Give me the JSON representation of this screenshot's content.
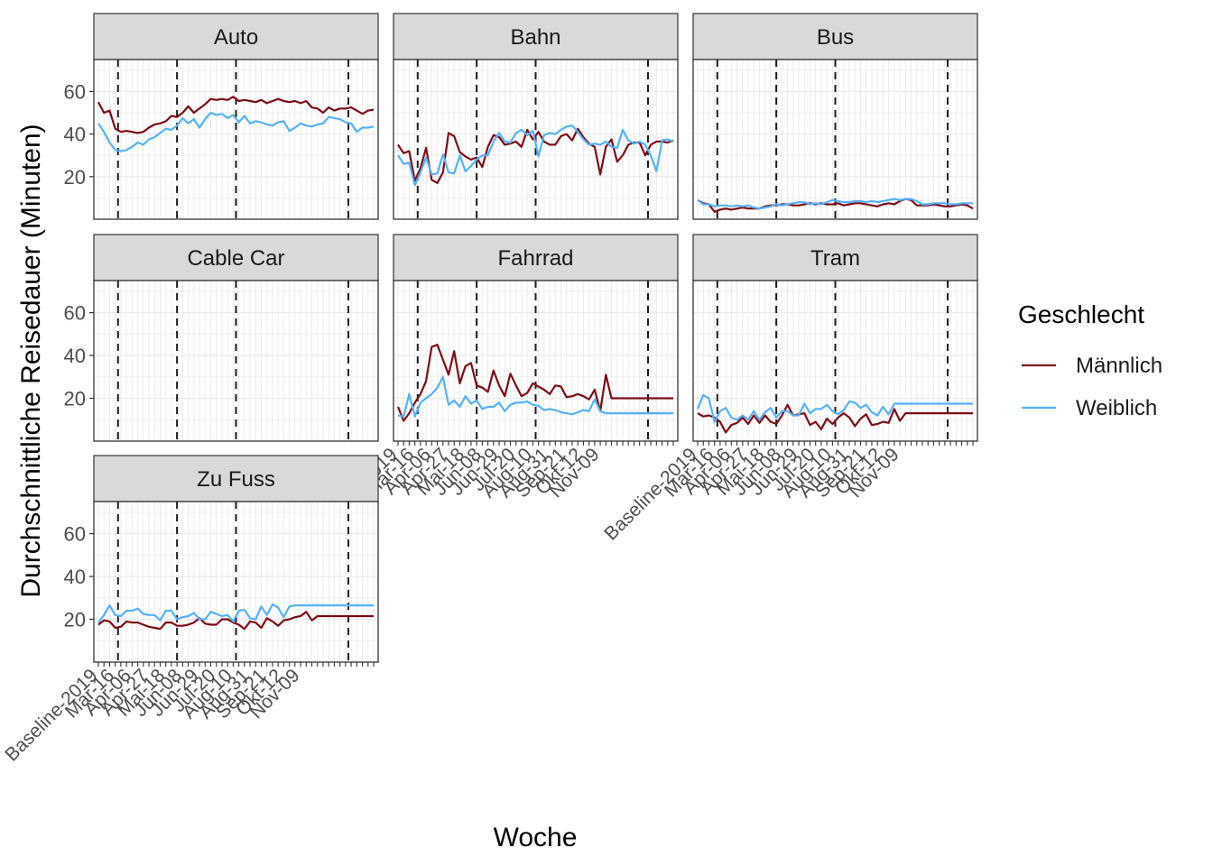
{
  "chart_data": {
    "type": "line",
    "xlabel": "Woche",
    "ylabel": "Durchschnittliche Reisedauer (Minuten)",
    "ylim": [
      0,
      75
    ],
    "yticks": [
      20,
      40,
      60
    ],
    "grid": true,
    "legend": {
      "title": "Geschlecht",
      "position": "right",
      "entries": [
        {
          "name": "Männlich",
          "color": "#7b0d17"
        },
        {
          "name": "Weiblich",
          "color": "#56b1f7"
        }
      ]
    },
    "x_count": 50,
    "x_tick_labels": [
      {
        "i": 0,
        "label": "Baseline-2019"
      },
      {
        "i": 3,
        "label": "Mar-16"
      },
      {
        "i": 6,
        "label": "Apr-06"
      },
      {
        "i": 9,
        "label": "Apr-27"
      },
      {
        "i": 12,
        "label": "Mai-18"
      },
      {
        "i": 15,
        "label": "Jun-08"
      },
      {
        "i": 18,
        "label": "Jun-29"
      },
      {
        "i": 21,
        "label": "Jul-20"
      },
      {
        "i": 24,
        "label": "Aug-10"
      },
      {
        "i": 27,
        "label": "Aug-31"
      },
      {
        "i": 30,
        "label": "Sep-21"
      },
      {
        "i": 33,
        "label": "Okt-12"
      },
      {
        "i": 36,
        "label": "Nov-09"
      }
    ],
    "x_tick_count": 50,
    "vlines_x": [
      3.5,
      14,
      24.5,
      44.5
    ],
    "panels": [
      {
        "label": "Auto",
        "series": [
          {
            "name": "Männlich",
            "values": [
              55.0,
              50.0,
              51.0,
              42.5,
              41.0,
              41.5,
              41.0,
              40.5,
              41.0,
              43.0,
              44.5,
              45.0,
              46.0,
              48.5,
              48.0,
              50.0,
              53.0,
              50.0,
              52.0,
              54.0,
              56.5,
              56.0,
              56.5,
              56.0,
              57.5,
              55.5,
              56.0,
              55.5,
              55.0,
              56.0,
              54.5,
              55.5,
              56.5,
              55.5,
              55.0,
              55.5,
              54.5,
              55.5,
              52.5,
              52.0,
              50.0,
              52.5,
              51.0,
              52.0,
              52.0,
              52.5,
              51.0,
              49.5,
              51.0,
              51.5
            ]
          },
          {
            "name": "Weiblich",
            "values": [
              45.0,
              41.0,
              36.0,
              32.5,
              32.0,
              32.5,
              34.0,
              36.0,
              35.0,
              37.5,
              38.5,
              40.5,
              42.5,
              42.0,
              44.0,
              47.5,
              45.0,
              47.0,
              43.0,
              47.0,
              50.0,
              49.0,
              49.5,
              47.5,
              49.0,
              45.5,
              48.5,
              45.0,
              46.0,
              45.5,
              44.5,
              44.0,
              45.5,
              46.0,
              41.5,
              43.0,
              45.0,
              44.0,
              43.5,
              44.5,
              45.0,
              48.0,
              47.5,
              47.0,
              45.5,
              45.0,
              41.0,
              43.0,
              43.0,
              43.5
            ]
          }
        ]
      },
      {
        "label": "Bahn",
        "series": [
          {
            "name": "Männlich",
            "values": [
              35.0,
              31.0,
              32.0,
              18.0,
              24.0,
              33.5,
              18.5,
              17.0,
              22.0,
              40.5,
              39.0,
              31.5,
              29.5,
              28.0,
              29.0,
              24.5,
              34.0,
              39.5,
              38.5,
              35.0,
              35.5,
              36.5,
              34.0,
              42.0,
              37.5,
              41.0,
              36.5,
              35.0,
              35.0,
              39.0,
              40.0,
              37.0,
              42.5,
              38.5,
              35.5,
              34.0,
              21.0,
              34.0,
              37.5,
              27.0,
              30.0,
              35.0,
              36.0,
              36.0,
              30.0,
              35.0,
              36.5,
              36.5,
              36.0,
              37.0
            ]
          },
          {
            "name": "Weiblich",
            "values": [
              30.0,
              26.0,
              26.5,
              16.0,
              22.0,
              29.0,
              21.0,
              21.5,
              30.5,
              22.0,
              21.5,
              30.0,
              22.5,
              25.0,
              28.0,
              30.0,
              30.0,
              36.5,
              40.5,
              36.5,
              36.0,
              40.5,
              42.0,
              39.5,
              41.5,
              29.5,
              39.5,
              40.5,
              40.0,
              42.0,
              43.5,
              44.0,
              41.0,
              37.5,
              35.0,
              35.5,
              35.0,
              36.5,
              34.0,
              33.5,
              42.0,
              37.0,
              35.5,
              36.5,
              35.0,
              30.0,
              22.5,
              37.0,
              37.5,
              36.5
            ]
          }
        ]
      },
      {
        "label": "Bus",
        "series": [
          {
            "name": "Männlich",
            "values": [
              9.0,
              7.5,
              7.0,
              3.5,
              4.5,
              5.0,
              4.5,
              5.0,
              5.5,
              5.0,
              5.0,
              5.0,
              6.0,
              6.5,
              6.5,
              7.0,
              7.0,
              6.5,
              6.5,
              7.0,
              7.5,
              7.0,
              7.5,
              7.0,
              7.0,
              7.5,
              6.5,
              7.0,
              7.5,
              7.5,
              7.0,
              6.5,
              6.0,
              7.0,
              7.5,
              7.0,
              8.5,
              9.5,
              9.0,
              6.5,
              6.5,
              6.5,
              7.0,
              6.5,
              6.0,
              6.0,
              6.5,
              7.0,
              6.5,
              5.0
            ]
          },
          {
            "name": "Weiblich",
            "values": [
              9.0,
              7.0,
              7.0,
              6.0,
              6.5,
              6.5,
              6.0,
              6.5,
              6.0,
              6.5,
              5.5,
              5.0,
              5.5,
              6.0,
              7.0,
              6.5,
              7.0,
              7.5,
              8.0,
              8.0,
              7.0,
              7.5,
              7.0,
              8.0,
              9.0,
              8.5,
              8.0,
              8.0,
              8.5,
              8.5,
              8.0,
              8.5,
              8.0,
              8.5,
              9.0,
              9.5,
              9.0,
              9.5,
              9.5,
              8.5,
              7.0,
              7.0,
              7.5,
              7.5,
              7.5,
              7.0,
              7.0,
              7.5,
              7.5,
              7.5
            ]
          }
        ]
      },
      {
        "label": "Cable Car",
        "series": [
          {
            "name": "Männlich",
            "values": []
          },
          {
            "name": "Weiblich",
            "values": []
          }
        ]
      },
      {
        "label": "Fahrrad",
        "series": [
          {
            "name": "Männlich",
            "values": [
              16.0,
              9.5,
              13.0,
              18.0,
              22.0,
              28.0,
              44.0,
              45.0,
              38.0,
              31.0,
              42.0,
              27.0,
              35.0,
              36.5,
              26.0,
              25.0,
              23.0,
              33.0,
              26.0,
              21.0,
              31.5,
              26.0,
              21.0,
              22.5,
              27.0,
              25.5,
              24.0,
              22.0,
              26.0,
              25.5,
              20.5,
              21.0,
              22.0,
              21.0,
              19.5,
              24.0,
              14.0,
              31.0,
              20.0,
              20.0,
              20.0,
              20.0,
              20.0,
              20.0,
              20.0,
              20.0,
              20.0,
              20.0,
              20.0,
              20.0
            ]
          },
          {
            "name": "Weiblich",
            "values": [
              12.0,
              11.5,
              22.0,
              11.5,
              18.0,
              20.0,
              22.0,
              25.0,
              30.0,
              17.0,
              19.0,
              16.0,
              21.0,
              17.5,
              19.0,
              15.0,
              16.0,
              16.0,
              18.0,
              14.0,
              17.0,
              18.0,
              18.0,
              18.5,
              17.0,
              16.5,
              14.5,
              15.0,
              14.5,
              13.5,
              13.0,
              12.5,
              13.5,
              14.5,
              14.0,
              19.5,
              14.0,
              13.0,
              13.0,
              13.0,
              13.0,
              13.0,
              13.0,
              13.0,
              13.0,
              13.0,
              13.0,
              13.0,
              13.0,
              13.0
            ]
          }
        ]
      },
      {
        "label": "Tram",
        "series": [
          {
            "name": "Männlich",
            "values": [
              13.0,
              11.5,
              12.0,
              11.0,
              9.0,
              4.0,
              7.5,
              8.5,
              11.0,
              8.0,
              12.0,
              8.5,
              12.0,
              9.0,
              8.0,
              12.0,
              17.0,
              12.0,
              12.5,
              13.0,
              7.5,
              9.0,
              5.5,
              10.5,
              8.0,
              11.0,
              13.0,
              11.0,
              7.0,
              10.5,
              12.5,
              7.5,
              8.0,
              9.0,
              8.5,
              15.0,
              9.5,
              13.0,
              13.0,
              13.0,
              13.0,
              13.0,
              13.0,
              13.0,
              13.0,
              13.0,
              13.0,
              13.0,
              13.0,
              13.0
            ]
          },
          {
            "name": "Weiblich",
            "values": [
              15.0,
              21.5,
              20.0,
              9.0,
              14.0,
              15.5,
              11.0,
              10.0,
              12.0,
              10.0,
              14.0,
              10.0,
              13.5,
              15.5,
              11.0,
              14.0,
              14.0,
              12.0,
              12.0,
              17.5,
              13.0,
              15.0,
              15.0,
              17.0,
              14.0,
              12.5,
              14.5,
              18.5,
              18.0,
              15.5,
              17.0,
              13.5,
              12.0,
              16.0,
              12.5,
              17.5,
              17.5,
              17.5,
              17.5,
              17.5,
              17.5,
              17.5,
              17.5,
              17.5,
              17.5,
              17.5,
              17.5,
              17.5,
              17.5,
              17.5
            ]
          }
        ]
      },
      {
        "label": "Zu Fuss",
        "series": [
          {
            "name": "Männlich",
            "values": [
              17.5,
              19.5,
              19.0,
              16.0,
              16.5,
              19.0,
              18.5,
              18.5,
              17.5,
              16.5,
              16.0,
              15.5,
              18.5,
              18.5,
              17.0,
              17.0,
              17.5,
              18.5,
              20.5,
              18.0,
              17.5,
              17.5,
              20.0,
              20.0,
              18.5,
              17.5,
              15.5,
              19.0,
              18.5,
              16.0,
              20.5,
              19.0,
              17.0,
              19.5,
              20.0,
              21.0,
              21.5,
              23.5,
              19.5,
              21.5,
              21.5,
              21.5,
              21.5,
              21.5,
              21.5,
              21.5,
              21.5,
              21.5,
              21.5,
              21.5
            ]
          },
          {
            "name": "Weiblich",
            "values": [
              18.5,
              22.0,
              26.5,
              22.0,
              21.5,
              24.0,
              24.0,
              25.0,
              22.5,
              22.0,
              22.0,
              19.5,
              24.0,
              24.0,
              20.0,
              21.0,
              21.5,
              23.0,
              20.0,
              20.0,
              23.5,
              22.5,
              21.5,
              22.0,
              19.0,
              24.0,
              24.5,
              20.5,
              20.0,
              26.0,
              22.0,
              27.0,
              25.5,
              21.0,
              26.0,
              26.5,
              26.5,
              26.5,
              26.5,
              26.5,
              26.5,
              26.5,
              26.5,
              26.5,
              26.5,
              26.5,
              26.5,
              26.5,
              26.5,
              26.5
            ]
          }
        ]
      }
    ]
  }
}
